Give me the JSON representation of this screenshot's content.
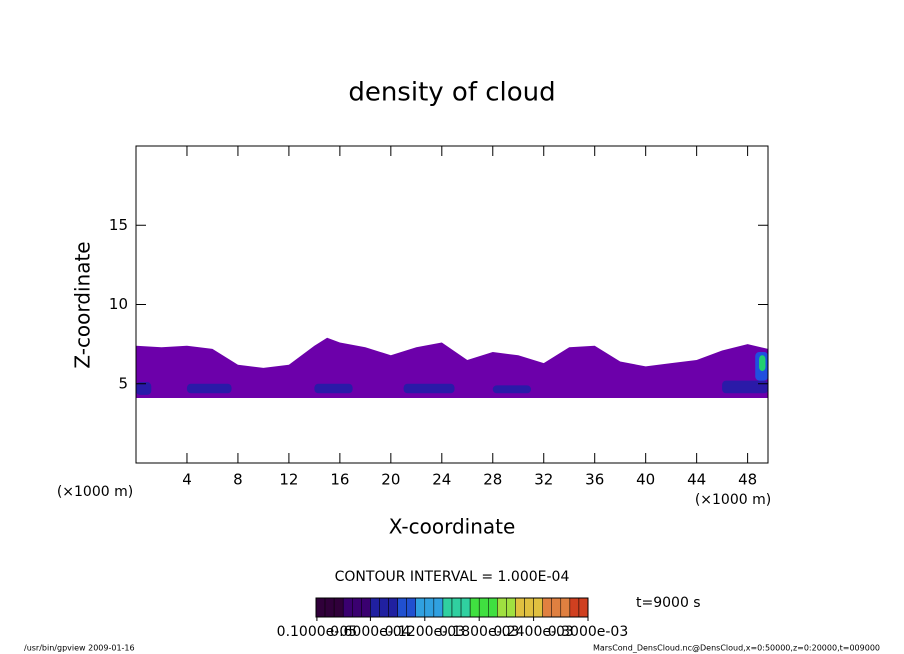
{
  "chart_data": {
    "type": "contour",
    "title": "density of cloud",
    "xlabel": "X-coordinate",
    "ylabel": "Z-coordinate",
    "x_unit_label": "(×1000 m)",
    "x_unit_label_right": "(×1000 m)",
    "xlim": [
      0,
      49.6
    ],
    "ylim": [
      0,
      20
    ],
    "xticks": [
      4,
      8,
      12,
      16,
      20,
      24,
      28,
      32,
      36,
      40,
      44,
      48
    ],
    "yticks": [
      5,
      10,
      15
    ],
    "layer": {
      "color": "#6c00aa",
      "x": [
        0,
        2,
        4,
        6,
        8,
        10,
        12,
        14,
        15,
        16,
        18,
        20,
        22,
        24,
        26,
        28,
        30,
        32,
        34,
        36,
        38,
        40,
        42,
        44,
        46,
        48,
        49.6
      ],
      "top": [
        7.4,
        7.3,
        7.4,
        7.2,
        6.2,
        6.0,
        6.2,
        7.4,
        7.9,
        7.6,
        7.3,
        6.8,
        7.3,
        7.6,
        6.5,
        7.0,
        6.8,
        6.3,
        7.3,
        7.4,
        6.4,
        6.1,
        6.3,
        6.5,
        7.1,
        7.5,
        7.2
      ],
      "bottom": [
        4.1,
        4.1,
        4.1,
        4.1,
        4.1,
        4.1,
        4.1,
        4.1,
        4.1,
        4.1,
        4.1,
        4.1,
        4.1,
        4.1,
        4.1,
        4.1,
        4.1,
        4.1,
        4.1,
        4.1,
        4.1,
        4.1,
        4.1,
        4.1,
        4.1,
        4.1,
        4.1
      ]
    },
    "cores": [
      {
        "color": "#2a1aa8",
        "x": [
          0,
          1.2
        ],
        "z": [
          4.3,
          5.1
        ]
      },
      {
        "color": "#2a1aa8",
        "x": [
          4,
          7.5
        ],
        "z": [
          4.4,
          5.0
        ]
      },
      {
        "color": "#2a1aa8",
        "x": [
          14,
          17
        ],
        "z": [
          4.4,
          5.0
        ]
      },
      {
        "color": "#2a1aa8",
        "x": [
          21,
          25
        ],
        "z": [
          4.4,
          5.0
        ]
      },
      {
        "color": "#2a1aa8",
        "x": [
          28,
          31
        ],
        "z": [
          4.4,
          4.9
        ]
      },
      {
        "color": "#2a1aa8",
        "x": [
          46,
          49.6
        ],
        "z": [
          4.4,
          5.2
        ]
      },
      {
        "color": "#2050e0",
        "x": [
          48.6,
          49.6
        ],
        "z": [
          5.2,
          7.0
        ]
      },
      {
        "color": "#22d070",
        "x": [
          48.9,
          49.4
        ],
        "z": [
          5.8,
          6.8
        ]
      }
    ],
    "contour_interval": "CONTOUR INTERVAL = 1.000E-04",
    "time_label": "t=9000 s",
    "colorbar": {
      "lim": [
        0,
        0.0003
      ],
      "colors": [
        "#30003a",
        "#3a0070",
        "#2020a0",
        "#2050d0",
        "#30a0e0",
        "#30d0a0",
        "#40e040",
        "#a0e040",
        "#e0c040",
        "#e08040",
        "#d04020"
      ],
      "ticks": [
        {
          "value": 1e-06,
          "label": "0.1000e-05"
        },
        {
          "value": 6e-05,
          "label": "0.6000e-04"
        },
        {
          "value": 0.00012,
          "label": "0.1200e-03"
        },
        {
          "value": 0.00018,
          "label": "0.1800e-03"
        },
        {
          "value": 0.00024,
          "label": "0.2400e-03"
        },
        {
          "value": 0.0003,
          "label": "0.3000e-03"
        }
      ]
    },
    "footer_left": "/usr/bin/gpview  2009-01-16",
    "footer_right": "MarsCond_DensCloud.nc@DensCloud,x=0:50000,z=0:20000,t=009000"
  }
}
